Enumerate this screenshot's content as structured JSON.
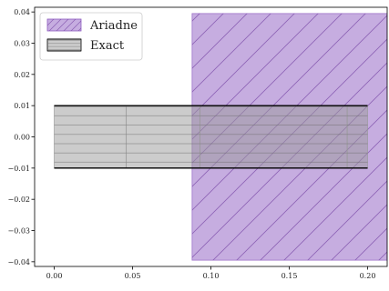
{
  "chart_data": {
    "type": "area",
    "title": "",
    "xlabel": "",
    "ylabel": "",
    "xlim": [
      -0.0125,
      0.2125
    ],
    "ylim": [
      -0.0415,
      0.0415
    ],
    "x_ticks": [
      0.0,
      0.05,
      0.1,
      0.15,
      0.2
    ],
    "x_tick_labels": [
      "0.00",
      "0.05",
      "0.10",
      "0.15",
      "0.20"
    ],
    "y_ticks": [
      0.04,
      0.03,
      0.02,
      0.01,
      0.0,
      -0.01,
      -0.02,
      -0.03,
      -0.04
    ],
    "y_tick_labels": [
      "0.04",
      "0.03",
      "0.02",
      "0.01",
      "0.00",
      "−0.01",
      "−0.02",
      "−0.03",
      "−0.04"
    ],
    "grid": false,
    "legend_position": "top-left",
    "series": [
      {
        "name": "Ariadne",
        "color": "#8e5cc1",
        "fill_alpha": 0.5,
        "hatch": "diagonal",
        "boxes": [
          {
            "x0": 0.088,
            "x1": 0.2125,
            "y0": -0.0395,
            "y1": 0.0395
          }
        ]
      },
      {
        "name": "Exact",
        "color": "#999999",
        "fill_alpha": 0.5,
        "hatch": "horizontal",
        "boxes": [
          {
            "x0": 0.0,
            "x1": 0.046,
            "y0": -0.01,
            "y1": 0.01
          },
          {
            "x0": 0.046,
            "x1": 0.093,
            "y0": -0.01,
            "y1": 0.01
          },
          {
            "x0": 0.093,
            "x1": 0.187,
            "y0": -0.01,
            "y1": 0.01
          },
          {
            "x0": 0.187,
            "x1": 0.2,
            "y0": -0.01,
            "y1": 0.01
          }
        ],
        "edges": [
          {
            "x0": 0.0,
            "x1": 0.2,
            "y": 0.01
          },
          {
            "x0": 0.0,
            "x1": 0.2,
            "y": -0.01
          }
        ]
      }
    ]
  }
}
